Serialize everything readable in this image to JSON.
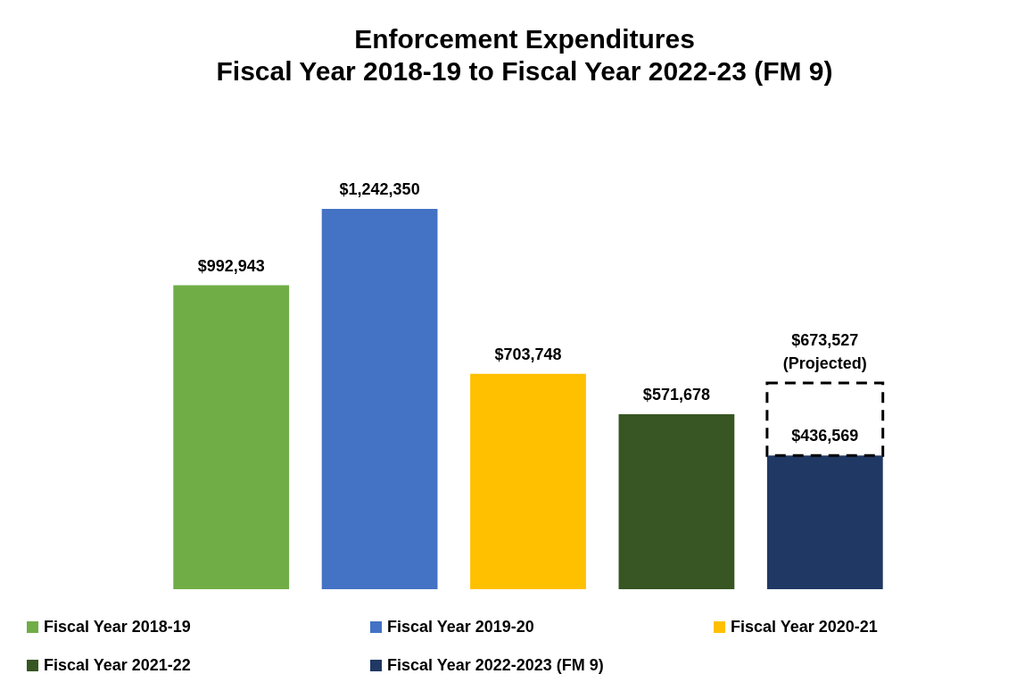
{
  "chart_data": {
    "type": "bar",
    "title": "Enforcement Expenditures",
    "subtitle": "Fiscal Year 2018-19 to Fiscal Year 2022-23 (FM 9)",
    "categories": [
      null,
      null,
      null,
      null,
      null
    ],
    "stacked": true,
    "tick_labels": false,
    "legend": "bottom",
    "series": [
      {
        "name": "Fiscal Year 2018-19",
        "color": "#70ad47",
        "values": [
          992943,
          null,
          null,
          null,
          null
        ],
        "value_labels": [
          "$992,943",
          null,
          null,
          null,
          null
        ]
      },
      {
        "name": "Fiscal Year 2019-20",
        "color": "#4472c4",
        "values": [
          null,
          1242350,
          null,
          null,
          null
        ],
        "value_labels": [
          null,
          "$1,242,350",
          null,
          null,
          null
        ]
      },
      {
        "name": "Fiscal Year 2020-21",
        "color": "#ffc000",
        "values": [
          null,
          null,
          703748,
          null,
          null
        ],
        "value_labels": [
          null,
          null,
          "$703,748",
          null,
          null
        ]
      },
      {
        "name": "Fiscal Year 2021-22",
        "color": "#375623",
        "values": [
          null,
          null,
          null,
          571678,
          null
        ],
        "value_labels": [
          null,
          null,
          null,
          "$571,678",
          null
        ]
      },
      {
        "name": "Fiscal Year 2022-2023 (FM 9)",
        "color": "#203864",
        "values": [
          null,
          null,
          null,
          null,
          436569
        ],
        "value_labels": [
          null,
          null,
          null,
          null,
          "$436,569"
        ]
      },
      {
        "color": "#ffffff",
        "line_style": "dashed",
        "values": [
          null,
          null,
          null,
          null,
          236958
        ]
      }
    ],
    "annotations": [
      "$673,527 (Projected)"
    ]
  }
}
